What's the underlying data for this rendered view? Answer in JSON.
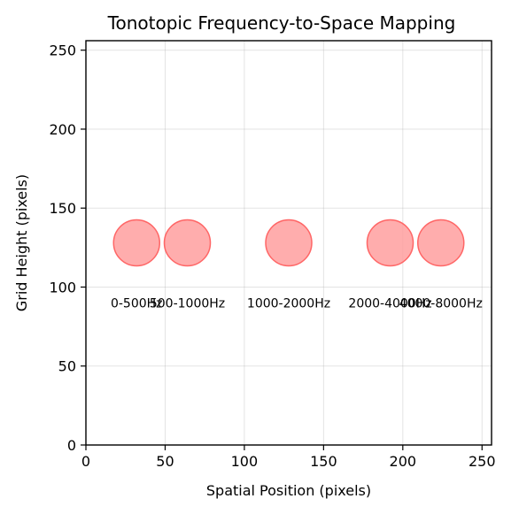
{
  "chart_data": {
    "type": "scatter",
    "title": "Tonotopic Frequency-to-Space Mapping",
    "xlabel": "Spatial Position (pixels)",
    "ylabel": "Grid Height (pixels)",
    "xlim": [
      0,
      256
    ],
    "ylim": [
      0,
      256
    ],
    "xticks": [
      0,
      50,
      100,
      150,
      200,
      250
    ],
    "yticks": [
      0,
      50,
      100,
      150,
      200,
      250
    ],
    "grid": true,
    "marker_color": "#ff9999",
    "marker_edge_color": "#ff6666",
    "points": [
      {
        "x": 32,
        "y": 128,
        "label": "0-500Hz",
        "label_y": 90
      },
      {
        "x": 64,
        "y": 128,
        "label": "500-1000Hz",
        "label_y": 90
      },
      {
        "x": 128,
        "y": 128,
        "label": "1000-2000Hz",
        "label_y": 90
      },
      {
        "x": 192,
        "y": 128,
        "label": "2000-4000Hz",
        "label_y": 90
      },
      {
        "x": 224,
        "y": 128,
        "label": "4000-8000Hz",
        "label_y": 90
      }
    ]
  }
}
